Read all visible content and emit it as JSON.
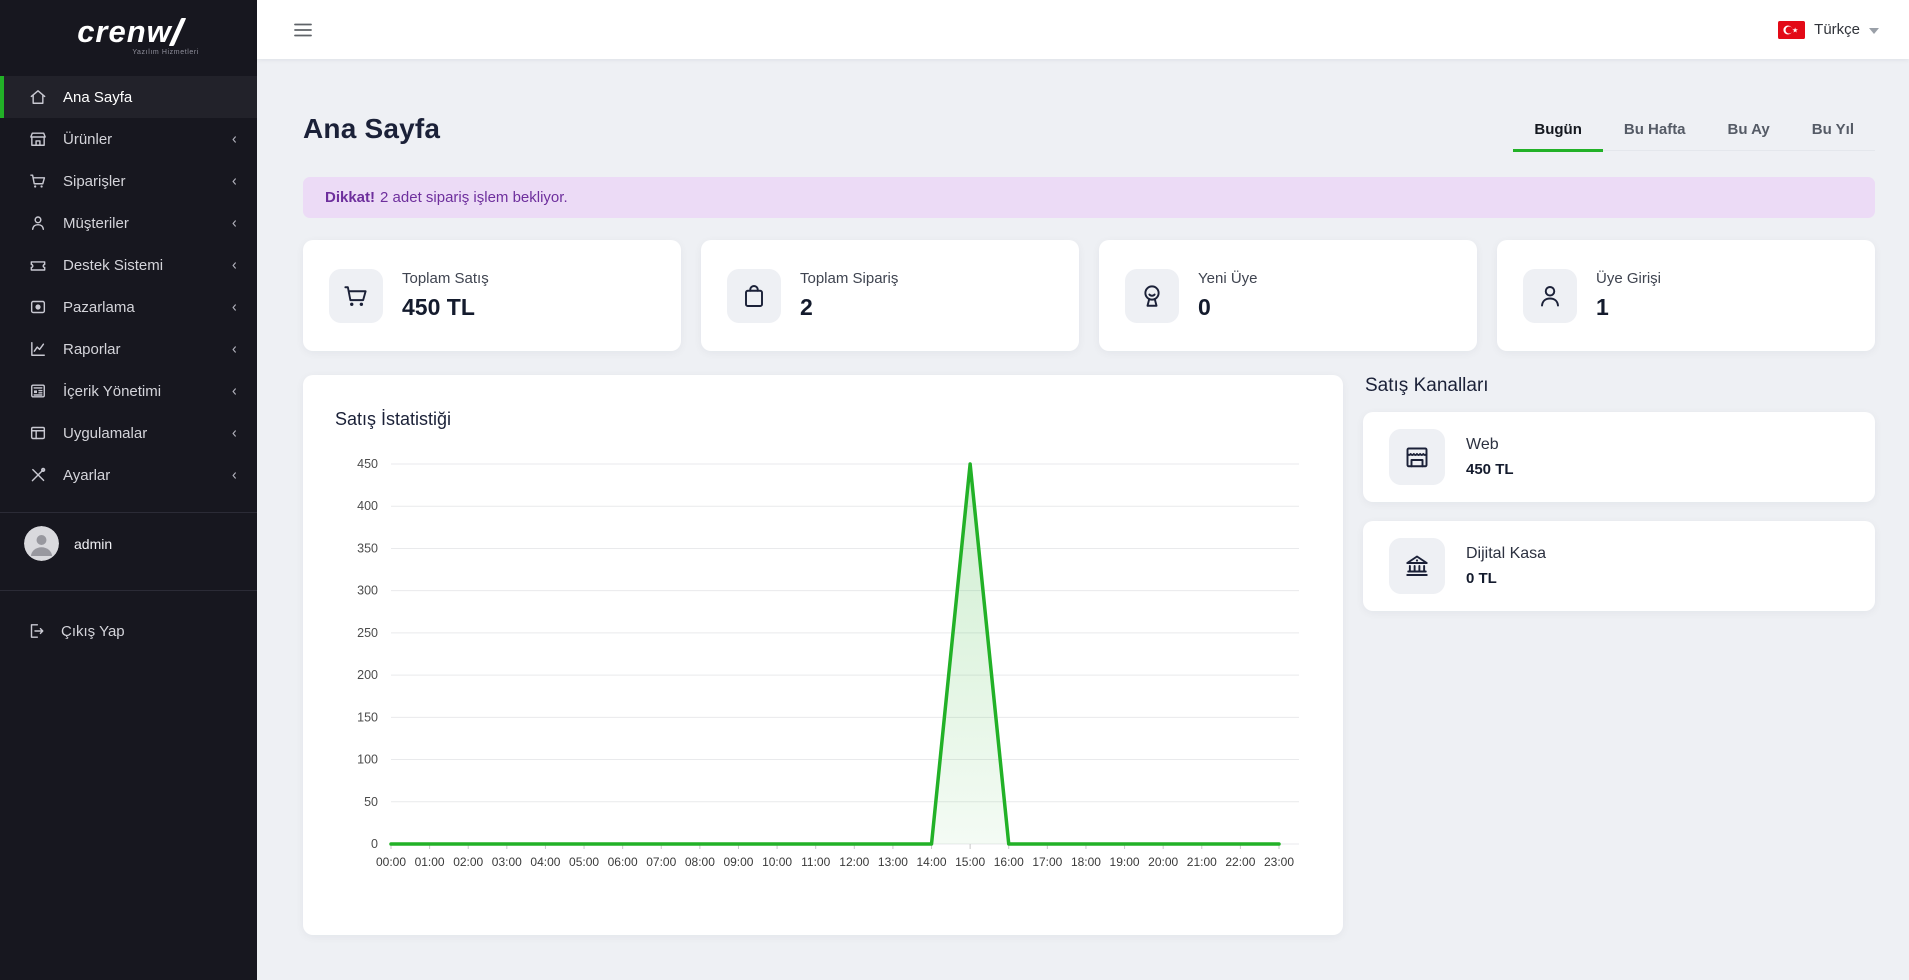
{
  "brand": {
    "name": "crenw",
    "tagline": "Yazılım Hizmetleri"
  },
  "topbar": {
    "language": "Türkçe"
  },
  "sidebar": {
    "items": [
      {
        "label": "Ana Sayfa",
        "icon": "home-icon",
        "active": true,
        "has_children": false
      },
      {
        "label": "Ürünler",
        "icon": "storefront-icon",
        "active": false,
        "has_children": true
      },
      {
        "label": "Siparişler",
        "icon": "cart-icon",
        "active": false,
        "has_children": true
      },
      {
        "label": "Müşteriler",
        "icon": "person-icon",
        "active": false,
        "has_children": true
      },
      {
        "label": "Destek Sistemi",
        "icon": "ticket-icon",
        "active": false,
        "has_children": true
      },
      {
        "label": "Pazarlama",
        "icon": "image-icon",
        "active": false,
        "has_children": true
      },
      {
        "label": "Raporlar",
        "icon": "chart-line-icon",
        "active": false,
        "has_children": true
      },
      {
        "label": "İçerik Yönetimi",
        "icon": "news-icon",
        "active": false,
        "has_children": true
      },
      {
        "label": "Uygulamalar",
        "icon": "window-icon",
        "active": false,
        "has_children": true
      },
      {
        "label": "Ayarlar",
        "icon": "tools-icon",
        "active": false,
        "has_children": true
      }
    ],
    "user": "admin",
    "logout": "Çıkış Yap"
  },
  "page": {
    "title": "Ana Sayfa",
    "tabs": [
      {
        "label": "Bugün",
        "active": true
      },
      {
        "label": "Bu Hafta",
        "active": false
      },
      {
        "label": "Bu Ay",
        "active": false
      },
      {
        "label": "Bu Yıl",
        "active": false
      }
    ],
    "alert": {
      "emphasis": "Dikkat!",
      "text": "2 adet sipariş işlem bekliyor."
    }
  },
  "stats": [
    {
      "label": "Toplam Satış",
      "value": "450 TL",
      "icon": "cart-icon"
    },
    {
      "label": "Toplam Sipariş",
      "value": "2",
      "icon": "shopping-bag-icon"
    },
    {
      "label": "Yeni Üye",
      "value": "0",
      "icon": "member-face-icon"
    },
    {
      "label": "Üye Girişi",
      "value": "1",
      "icon": "person-icon"
    }
  ],
  "channels": {
    "heading": "Satış Kanalları",
    "items": [
      {
        "label": "Web",
        "value": "450 TL",
        "icon": "storefront-icon"
      },
      {
        "label": "Dijital Kasa",
        "value": "0 TL",
        "icon": "bank-icon"
      }
    ]
  },
  "chart_data": {
    "type": "area",
    "title": "Satış İstatistiği",
    "x": [
      "00:00",
      "01:00",
      "02:00",
      "03:00",
      "04:00",
      "05:00",
      "06:00",
      "07:00",
      "08:00",
      "09:00",
      "10:00",
      "11:00",
      "12:00",
      "13:00",
      "14:00",
      "15:00",
      "16:00",
      "17:00",
      "18:00",
      "19:00",
      "20:00",
      "21:00",
      "22:00",
      "23:00"
    ],
    "values": [
      0,
      0,
      0,
      0,
      0,
      0,
      0,
      0,
      0,
      0,
      0,
      0,
      0,
      0,
      0,
      450,
      0,
      0,
      0,
      0,
      0,
      0,
      0,
      0
    ],
    "ylim": [
      0,
      450
    ],
    "ytick_step": 50,
    "xlabel": "",
    "ylabel": "",
    "grid": true,
    "legend": false,
    "line_color": "#22b127"
  },
  "colors": {
    "accent": "#22b127",
    "alert_bg": "#ecdbf6",
    "alert_text": "#6e2f9d",
    "flag_red": "#e30a17",
    "sidebar_bg": "#17171f"
  }
}
